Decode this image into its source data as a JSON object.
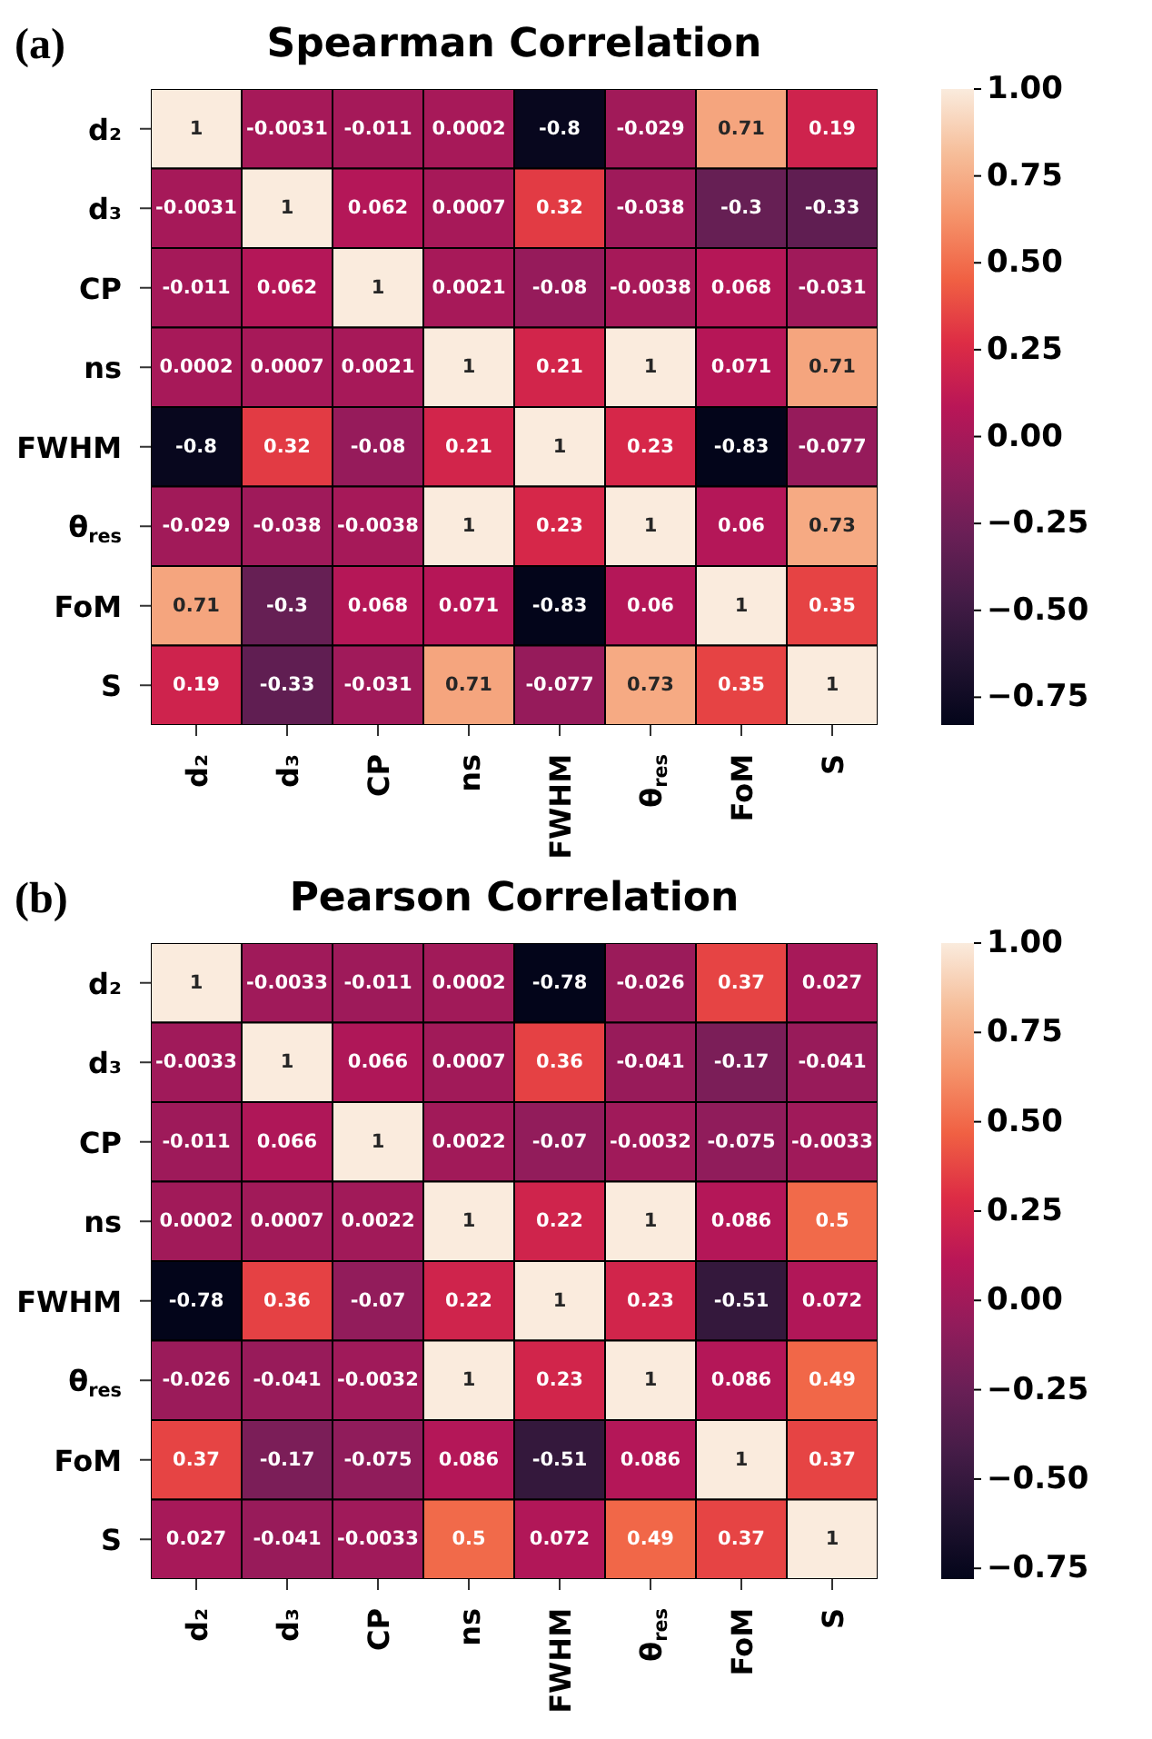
{
  "chart_data": [
    {
      "type": "heatmap",
      "title": "Spearman Correlation",
      "annotations": [
        "(a)"
      ],
      "data_labels": true,
      "categories": [
        "d₂",
        "d₃",
        "CP",
        "ns",
        "FWHM",
        "θ$_{res}$",
        "FoM",
        "S"
      ],
      "y_categories": [
        "d₂",
        "d₃",
        "CP",
        "ns",
        "FWHM",
        "θ$_{res}$",
        "FoM",
        "S"
      ],
      "cells": [
        [
          1,
          -0.0031,
          -0.011,
          0.0002,
          -0.8,
          -0.029,
          0.71,
          0.19
        ],
        [
          -0.0031,
          1,
          0.062,
          0.0007,
          0.32,
          -0.038,
          -0.3,
          -0.33
        ],
        [
          -0.011,
          0.062,
          1,
          0.0021,
          -0.08,
          -0.0038,
          0.068,
          -0.031
        ],
        [
          0.0002,
          0.0007,
          0.0021,
          1,
          0.21,
          1,
          0.071,
          0.71
        ],
        [
          -0.8,
          0.32,
          -0.08,
          0.21,
          1,
          0.23,
          -0.83,
          -0.077
        ],
        [
          -0.029,
          -0.038,
          -0.0038,
          1,
          0.23,
          1,
          0.06,
          0.73
        ],
        [
          0.71,
          -0.3,
          0.068,
          0.071,
          -0.83,
          0.06,
          1,
          0.35
        ],
        [
          0.19,
          -0.33,
          -0.031,
          0.71,
          -0.077,
          0.73,
          0.35,
          1
        ]
      ],
      "clim": [
        -0.83,
        1
      ],
      "cticks": [
        {
          "value": 1,
          "label": "1.00"
        },
        {
          "value": 0.75,
          "label": "0.75"
        },
        {
          "value": 0.5,
          "label": "0.50"
        },
        {
          "value": 0.25,
          "label": "0.25"
        },
        {
          "value": 0,
          "label": "0.00"
        },
        {
          "value": -0.25,
          "label": "−0.25"
        },
        {
          "value": -0.5,
          "label": "−0.50"
        },
        {
          "value": -0.75,
          "label": "−0.75"
        }
      ]
    },
    {
      "type": "heatmap",
      "title": "Pearson Correlation",
      "annotations": [
        "(b)"
      ],
      "data_labels": true,
      "categories": [
        "d₂",
        "d₃",
        "CP",
        "ns",
        "FWHM",
        "θ$_{res}$",
        "FoM",
        "S"
      ],
      "y_categories": [
        "d₂",
        "d₃",
        "CP",
        "ns",
        "FWHM",
        "θ$_{res}$",
        "FoM",
        "S"
      ],
      "cells": [
        [
          1,
          -0.0033,
          -0.011,
          0.0002,
          -0.78,
          -0.026,
          0.37,
          0.027
        ],
        [
          -0.0033,
          1,
          0.066,
          0.0007,
          0.36,
          -0.041,
          -0.17,
          -0.041
        ],
        [
          -0.011,
          0.066,
          1,
          0.0022,
          -0.07,
          -0.0032,
          -0.075,
          -0.0033
        ],
        [
          0.0002,
          0.0007,
          0.0022,
          1,
          0.22,
          1,
          0.086,
          0.5
        ],
        [
          -0.78,
          0.36,
          -0.07,
          0.22,
          1,
          0.23,
          -0.51,
          0.072
        ],
        [
          -0.026,
          -0.041,
          -0.0032,
          1,
          0.23,
          1,
          0.086,
          0.49
        ],
        [
          0.37,
          -0.17,
          -0.075,
          0.086,
          -0.51,
          0.086,
          1,
          0.37
        ],
        [
          0.027,
          -0.041,
          -0.0033,
          0.5,
          0.072,
          0.49,
          0.37,
          1
        ]
      ],
      "clim": [
        -0.78,
        1
      ],
      "cticks": [
        {
          "value": 1,
          "label": "1.00"
        },
        {
          "value": 0.75,
          "label": "0.75"
        },
        {
          "value": 0.5,
          "label": "0.50"
        },
        {
          "value": 0.25,
          "label": "0.25"
        },
        {
          "value": 0,
          "label": "0.00"
        },
        {
          "value": -0.25,
          "label": "−0.25"
        },
        {
          "value": -0.5,
          "label": "−0.50"
        },
        {
          "value": -0.75,
          "label": "−0.75"
        }
      ]
    }
  ]
}
